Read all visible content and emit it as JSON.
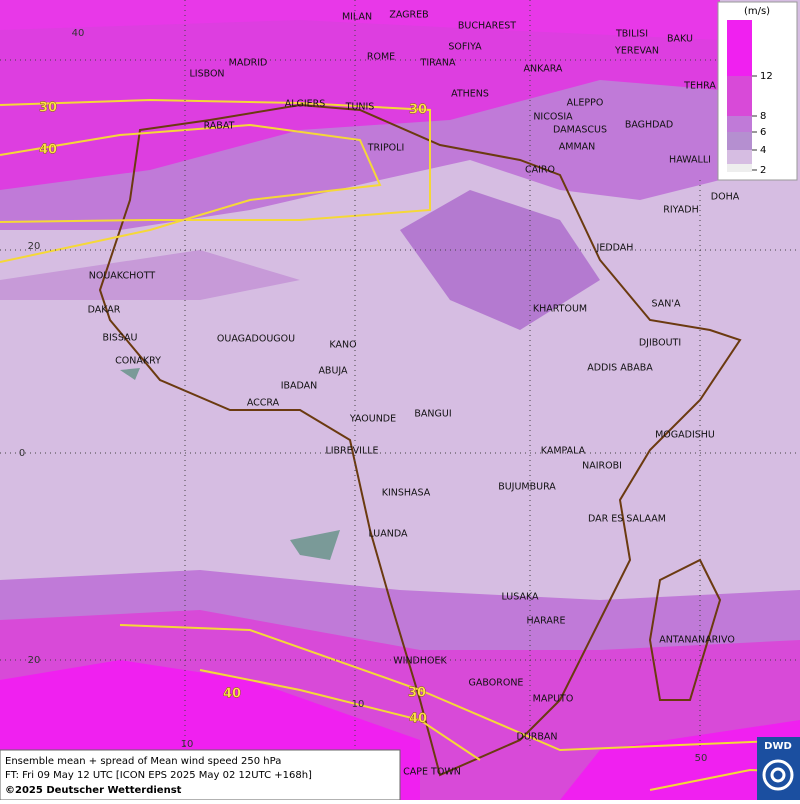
{
  "map": {
    "cities": [
      "MILAN",
      "ZAGREB",
      "BUCHAREST",
      "LISBON",
      "MADRID",
      "ROME",
      "SOFIYA",
      "TIRANA",
      "TBILISI",
      "BAKU",
      "YEREVAN",
      "ANKARA",
      "ATHENS",
      "ALGIERS",
      "TUNIS",
      "TEHRA",
      "RABAT",
      "ALEPPO",
      "NICOSIA",
      "BAGHDAD",
      "DAMASCUS",
      "TRIPOLI",
      "AMMAN",
      "HAWALLI",
      "CAIRO",
      "DOHA",
      "RIYADH",
      "JEDDAH",
      "NOUAKCHOTT",
      "SAN'A",
      "DAKAR",
      "KHARTOUM",
      "BISSAU",
      "DJIBOUTI",
      "OUAGADOUGOU",
      "KANO",
      "CONAKRY",
      "ADDIS ABABA",
      "ABUJA",
      "IBADAN",
      "ACCRA",
      "BANGUI",
      "YAOUNDE",
      "MOGADISHU",
      "LIBREVILLE",
      "KAMPALA",
      "NAIROBI",
      "BUJUMBURA",
      "KINSHASA",
      "DAR ES SALAAM",
      "LUANDA",
      "LUSAKA",
      "HARARE",
      "ANTANANARIVO",
      "WINDHOEK",
      "GABORONE",
      "MAPUTO",
      "DURBAN",
      "CAPE TOWN"
    ],
    "contour_labels": [
      "30",
      "30",
      "40",
      "40",
      "30",
      "40"
    ],
    "grid_labels": [
      "40",
      "20",
      "0",
      "20",
      "10",
      "10",
      "50"
    ]
  },
  "legend": {
    "unit": "(m/s)",
    "ticks": [
      12,
      8,
      6,
      4,
      2
    ]
  },
  "footer": {
    "line1": "Ensemble mean + spread of Mean wind speed 250 hPa",
    "line2": "FT: Fri 09 May 12 UTC [ICON EPS 2025 May 02 12UTC +168h]",
    "line3": "©2025 Deutscher Wetterdienst"
  },
  "logo": "DWD"
}
